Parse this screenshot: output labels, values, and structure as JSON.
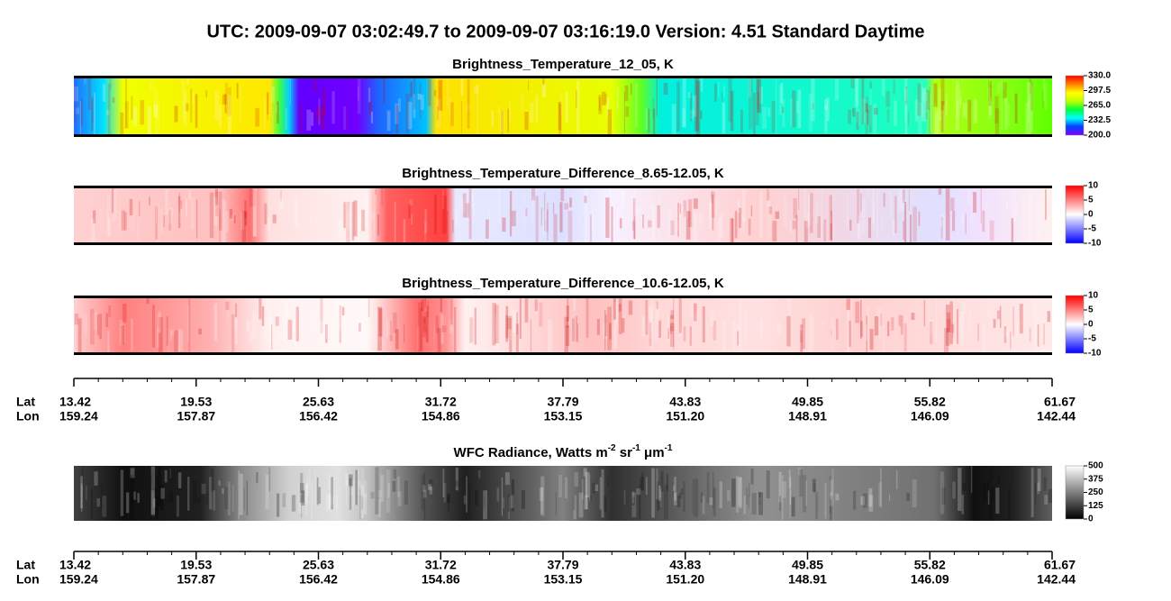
{
  "title": "UTC:  2009-09-07   03:02:49.7  to  2009-09-07   03:16:19.0    Version: 4.51  Standard Daytime",
  "chart_data": [
    {
      "type": "heatmap",
      "title": [
        {
          "text": "Brightness_Temperature_12_05, K"
        }
      ],
      "clim": [
        200,
        330
      ],
      "cticks": [
        {
          "value": 200,
          "label": "200.0"
        },
        {
          "value": 232.5,
          "label": "232.5"
        },
        {
          "value": 265,
          "label": "265.0"
        },
        {
          "value": 297.5,
          "label": "297.5"
        },
        {
          "value": 330,
          "label": "330.0"
        }
      ],
      "colormap": [
        "#8000ff",
        "#0040ff",
        "#00ffff",
        "#00ff40",
        "#c0ff00",
        "#ffff00",
        "#ff8000",
        "#ff0000"
      ]
    },
    {
      "type": "heatmap",
      "title": [
        {
          "text": "Brightness_Temperature_Difference_8.65-12.05, K"
        }
      ],
      "clim": [
        -10,
        10
      ],
      "cticks": [
        -10,
        -5,
        0,
        5,
        10
      ],
      "colormap": [
        "#0000ff",
        "#ffffff",
        "#ff0000"
      ]
    },
    {
      "type": "heatmap",
      "title": [
        {
          "text": "Brightness_Temperature_Difference_10.6-12.05, K"
        }
      ],
      "clim": [
        -10,
        10
      ],
      "cticks": [
        -10,
        -5,
        0,
        5,
        10
      ],
      "colormap": [
        "#0000ff",
        "#ffffff",
        "#ff0000"
      ]
    },
    {
      "type": "heatmap",
      "title": [
        {
          "text": "WFC Radiance, Watts m"
        },
        {
          "text": "-2",
          "sup": true
        },
        {
          "text": " sr"
        },
        {
          "text": "-1",
          "sup": true
        },
        {
          "text": " μm"
        },
        {
          "text": "-1",
          "sup": true
        }
      ],
      "clim": [
        0,
        500
      ],
      "cticks": [
        0,
        125,
        250,
        375,
        500
      ],
      "colormap": [
        "#000000",
        "#ffffff"
      ]
    }
  ],
  "axis": {
    "lat": {
      "label": "Lat",
      "ticks": [
        13.42,
        19.53,
        25.63,
        31.72,
        37.79,
        43.83,
        49.85,
        55.82,
        61.67
      ]
    },
    "lon": {
      "label": "Lon",
      "ticks": [
        159.24,
        157.87,
        156.42,
        154.86,
        153.15,
        {
          "value": 151.2,
          "label": "151.20"
        },
        148.91,
        146.09,
        142.44
      ]
    }
  }
}
